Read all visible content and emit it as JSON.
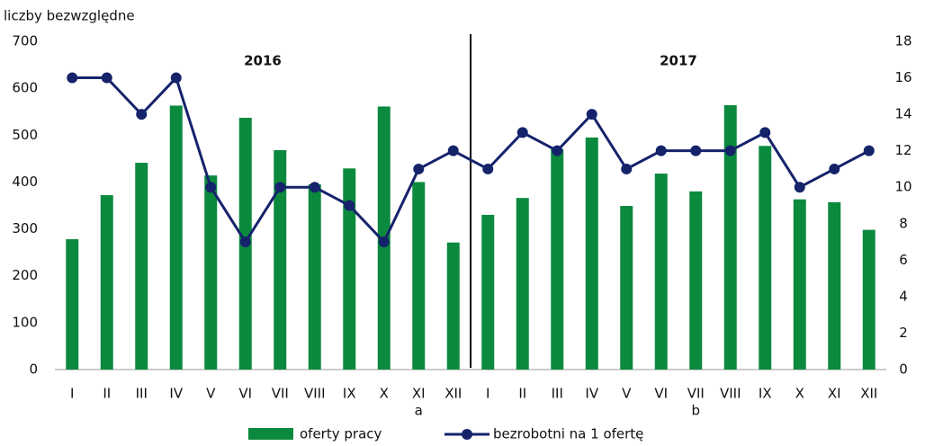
{
  "chart_data": {
    "type": "bar-line",
    "y_axis_label": "liczby bezwzględne",
    "year_labels": [
      "2016",
      "2017"
    ],
    "categories": [
      "I",
      "II",
      "III",
      "IV",
      "V",
      "VI",
      "VII",
      "VIII",
      "IX",
      "X",
      "XI",
      "XII",
      "I",
      "II",
      "III",
      "IV",
      "V",
      "VI",
      "VII",
      "VIII",
      "IX",
      "X",
      "XI",
      "XII"
    ],
    "category_notes": [
      null,
      null,
      null,
      null,
      null,
      null,
      null,
      null,
      null,
      null,
      "a",
      null,
      null,
      null,
      null,
      null,
      null,
      null,
      "b",
      null,
      null,
      null,
      null,
      null
    ],
    "series": [
      {
        "name": "oferty pracy",
        "color": "#0b8a3e",
        "kind": "bar",
        "values": [
          278,
          372,
          441,
          563,
          414,
          537,
          468,
          395,
          429,
          561,
          400,
          271,
          330,
          366,
          470,
          495,
          349,
          418,
          380,
          564,
          477,
          363,
          357,
          298
        ]
      },
      {
        "name": "bezrobotni na 1 ofertę",
        "color": "#15236b",
        "kind": "line",
        "axis": "y2",
        "values": [
          16,
          16,
          14,
          16,
          10,
          7,
          10,
          10,
          9,
          7,
          11,
          12,
          11,
          13,
          12,
          14,
          11,
          12,
          12,
          12,
          13,
          10,
          11,
          12
        ]
      }
    ],
    "ylim": [
      0,
      700
    ],
    "yticks": [
      0,
      100,
      200,
      300,
      400,
      500,
      600,
      700
    ],
    "y2lim": [
      0,
      18
    ],
    "y2ticks": [
      0,
      2,
      4,
      6,
      8,
      10,
      12,
      14,
      16,
      18
    ]
  }
}
